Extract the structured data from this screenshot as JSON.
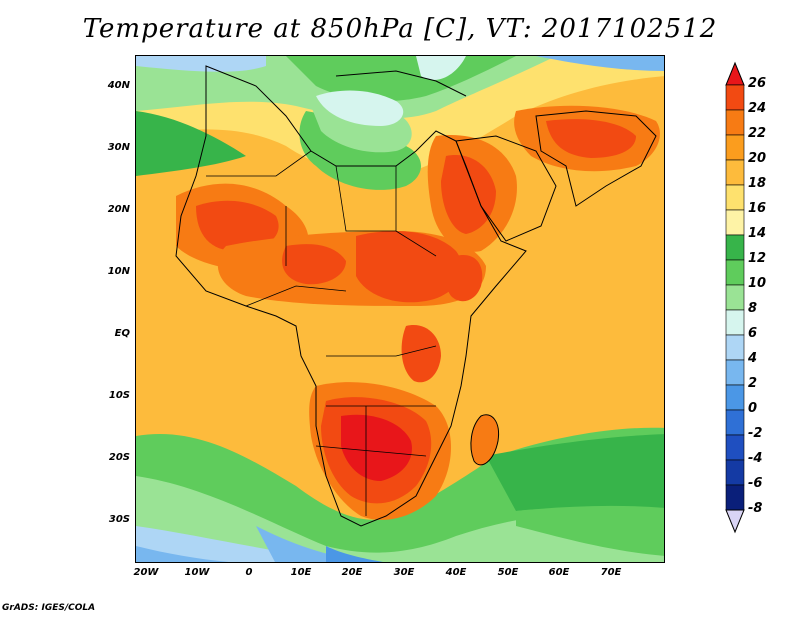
{
  "title": "Temperature at 850hPa [C], VT: 2017102512",
  "credit": "GrADS: IGES/COLA",
  "map": {
    "type": "filled-contour-map",
    "region": "Africa",
    "lat_range": [
      -36,
      45
    ],
    "lon_range": [
      -23,
      80
    ],
    "lat_ticks": [
      "40N",
      "30N",
      "20N",
      "10N",
      "EQ",
      "10S",
      "20S",
      "30S"
    ],
    "lon_ticks": [
      "20W",
      "10W",
      "0",
      "10E",
      "20E",
      "30E",
      "40E",
      "50E",
      "60E",
      "70E"
    ]
  },
  "colorbar": {
    "unit": "C",
    "levels": [
      "26",
      "24",
      "22",
      "20",
      "18",
      "16",
      "14",
      "12",
      "10",
      "8",
      "6",
      "4",
      "2",
      "0",
      "-2",
      "-4",
      "-6",
      "-8"
    ],
    "colors": [
      "#e8161a",
      "#f24a12",
      "#f77b14",
      "#fb9d1e",
      "#fdbb3c",
      "#fee16e",
      "#fef3a6",
      "#37b44a",
      "#5fcc5c",
      "#9ae395",
      "#d6f5ee",
      "#aed6f5",
      "#78b7ef",
      "#4b97e6",
      "#2f70d6",
      "#1f4fc0",
      "#143aa4",
      "#0a1f7a",
      "#d9d4f5"
    ]
  }
}
